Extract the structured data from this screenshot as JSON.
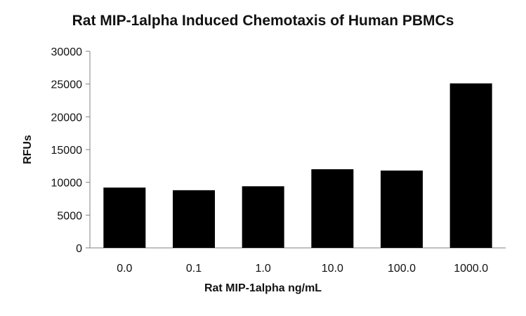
{
  "chart_data": {
    "type": "bar",
    "title": "Rat MIP-1alpha Induced Chemotaxis of Human PBMCs",
    "xlabel": "Rat MIP-1alpha ng/mL",
    "ylabel": "RFUs",
    "categories": [
      "0.0",
      "0.1",
      "1.0",
      "10.0",
      "100.0",
      "1000.0"
    ],
    "values": [
      9200,
      8800,
      9400,
      12000,
      11800,
      25100
    ],
    "ylim": [
      0,
      30000
    ],
    "yticks": [
      "0",
      "5000",
      "10000",
      "15000",
      "20000",
      "25000",
      "30000"
    ],
    "ytick_values": [
      0,
      5000,
      10000,
      15000,
      20000,
      25000,
      30000
    ],
    "grid": false,
    "legend": "none",
    "bar_color": "#000000",
    "axis_color": "#808080"
  }
}
